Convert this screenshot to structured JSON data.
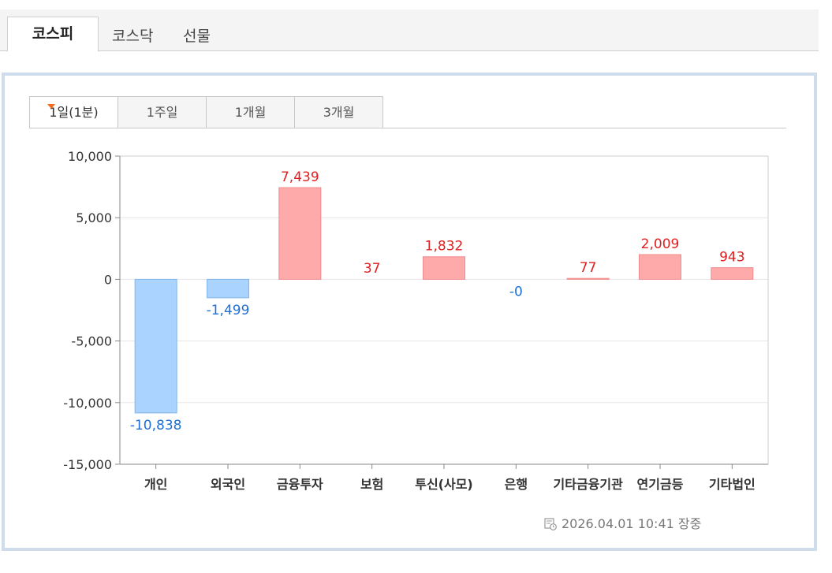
{
  "market_tabs": [
    {
      "label": "코스피",
      "active": true
    },
    {
      "label": "코스닥",
      "active": false
    },
    {
      "label": "선물",
      "active": false
    }
  ],
  "period_tabs": [
    {
      "label": "1일(1분)",
      "active": true
    },
    {
      "label": "1주일",
      "active": false
    },
    {
      "label": "1개월",
      "active": false
    },
    {
      "label": "3개월",
      "active": false
    }
  ],
  "colors": {
    "positive": "#ffaaaa",
    "positive_stroke": "#f08c8c",
    "positive_text": "#e02020",
    "negative": "#aad4ff",
    "negative_stroke": "#7fb6ec",
    "negative_text": "#1f6fd6"
  },
  "chart_data": {
    "type": "bar",
    "categories": [
      "개인",
      "외국인",
      "금융투자",
      "보험",
      "투신(사모)",
      "은행",
      "기타금융기관",
      "연기금등",
      "기타법인"
    ],
    "values": [
      -10838,
      -1499,
      7439,
      37,
      1832,
      0,
      77,
      2009,
      943
    ],
    "value_labels": [
      "-10,838",
      "-1,499",
      "7,439",
      "37",
      "1,832",
      "-0",
      "77",
      "2,009",
      "943"
    ],
    "ylim": [
      -15000,
      10000
    ],
    "yticks": [
      10000,
      5000,
      0,
      -5000,
      -10000,
      -15000
    ],
    "ytick_labels": [
      "10,000",
      "5,000",
      "0",
      "-5,000",
      "-10,000",
      "-15,000"
    ],
    "grid": true
  },
  "timestamp": "2026.04.01 10:41 장중"
}
